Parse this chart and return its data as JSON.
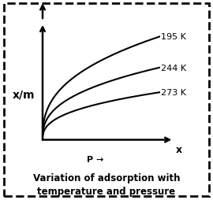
{
  "title": "Variation of adsorption with\ntemperature and pressure",
  "title_fontsize": 8.5,
  "curves": [
    {
      "label": "195 K",
      "scale": 1.0
    },
    {
      "label": "244 K",
      "scale": 0.7
    },
    {
      "label": "273 K",
      "scale": 0.46
    }
  ],
  "p_label": "P →",
  "x_axis_label": "x",
  "ylabel": "x/m",
  "curve_color": "#000000",
  "background_color": "#ffffff",
  "border_color": "#000000",
  "arrow_color": "#000000",
  "curve_power": 0.38,
  "label_fontsize": 8.0,
  "ylabel_fontsize": 10
}
